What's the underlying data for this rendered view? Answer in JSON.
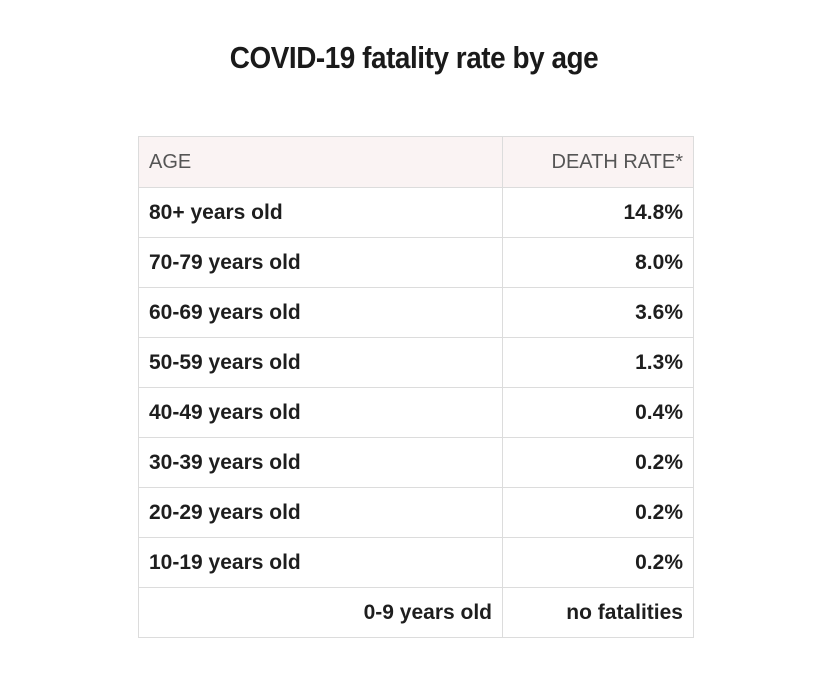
{
  "title": "COVID-19 fatality rate by age",
  "chart_data": {
    "type": "table",
    "title": "COVID-19 fatality rate by age",
    "columns": [
      "AGE",
      "DEATH RATE*"
    ],
    "rows": [
      [
        "80+ years old",
        "14.8%"
      ],
      [
        "70-79 years old",
        "8.0%"
      ],
      [
        "60-69 years old",
        "3.6%"
      ],
      [
        "50-59 years old",
        "1.3%"
      ],
      [
        "40-49 years old",
        "0.4%"
      ],
      [
        "30-39 years old",
        "0.2%"
      ],
      [
        "20-29 years old",
        "0.2%"
      ],
      [
        "10-19 years old",
        "0.2%"
      ],
      [
        "0-9 years old",
        "no fatalities"
      ]
    ]
  },
  "colors": {
    "header_bg": "#faf3f3",
    "border": "#dcdcdc",
    "text": "#1e1e1e"
  }
}
